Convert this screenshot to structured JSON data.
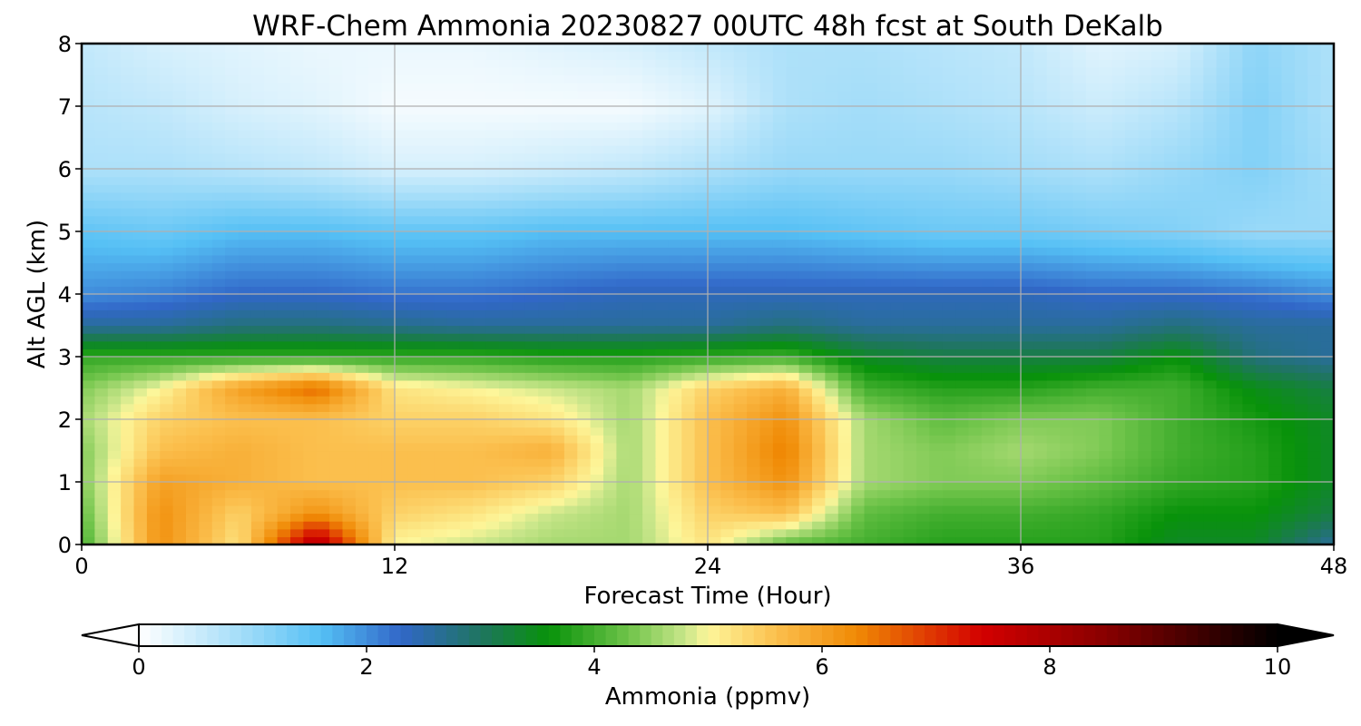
{
  "chart_data": {
    "type": "heatmap",
    "title": "WRF-Chem Ammonia  20230827 00UTC 48h fcst at South DeKalb",
    "xlabel": "Forecast Time (Hour)",
    "ylabel": "Alt AGL (km)",
    "xlim": [
      0,
      48
    ],
    "ylim": [
      0,
      8
    ],
    "x_ticks": [
      0,
      12,
      24,
      36,
      48
    ],
    "y_ticks": [
      0,
      1,
      2,
      3,
      4,
      5,
      6,
      7,
      8
    ],
    "grid": true,
    "x": [
      0,
      3,
      6,
      9,
      12,
      15,
      18,
      21,
      24,
      27,
      30,
      33,
      36,
      39,
      42,
      45,
      48
    ],
    "y": [
      0,
      0.5,
      1,
      1.5,
      2,
      2.5,
      3,
      3.5,
      4,
      5,
      6,
      7,
      8
    ],
    "values": [
      [
        4.0,
        6.2,
        5.2,
        8.0,
        5.0,
        4.8,
        4.6,
        4.6,
        5.2,
        4.2,
        4.0,
        3.8,
        3.8,
        3.8,
        3.4,
        3.4,
        2.6
      ],
      [
        4.2,
        6.2,
        5.4,
        6.2,
        5.4,
        5.2,
        4.8,
        4.6,
        5.4,
        5.6,
        4.2,
        4.0,
        4.0,
        3.9,
        3.6,
        3.6,
        3.2
      ],
      [
        4.4,
        6.0,
        5.8,
        5.6,
        5.6,
        5.6,
        5.4,
        4.6,
        5.6,
        6.2,
        4.6,
        4.4,
        4.4,
        4.2,
        3.9,
        3.8,
        3.4
      ],
      [
        4.4,
        5.6,
        5.8,
        5.6,
        5.6,
        5.6,
        5.8,
        4.6,
        5.6,
        6.4,
        4.6,
        4.4,
        4.6,
        4.4,
        4.0,
        3.8,
        3.4
      ],
      [
        4.6,
        5.4,
        5.6,
        5.6,
        5.4,
        5.4,
        5.2,
        4.6,
        5.6,
        6.2,
        4.6,
        4.2,
        4.4,
        4.4,
        4.0,
        3.7,
        3.4
      ],
      [
        4.4,
        5.0,
        6.0,
        6.6,
        5.2,
        5.0,
        4.8,
        4.6,
        5.4,
        5.8,
        4.0,
        3.8,
        3.8,
        4.0,
        4.0,
        3.5,
        3.2
      ],
      [
        3.9,
        3.9,
        3.9,
        3.9,
        3.9,
        3.9,
        3.8,
        3.8,
        3.9,
        4.0,
        3.4,
        3.2,
        3.2,
        3.2,
        3.6,
        2.8,
        2.6
      ],
      [
        2.6,
        2.6,
        2.8,
        2.8,
        2.7,
        2.6,
        2.6,
        2.6,
        2.6,
        2.8,
        2.6,
        2.6,
        2.6,
        2.6,
        2.8,
        2.6,
        2.6
      ],
      [
        2.0,
        2.1,
        2.3,
        2.3,
        2.2,
        2.2,
        2.3,
        2.4,
        2.4,
        2.4,
        2.4,
        2.4,
        2.4,
        2.3,
        2.3,
        2.2,
        2.0
      ],
      [
        1.5,
        1.4,
        1.6,
        1.6,
        1.5,
        1.5,
        1.6,
        1.6,
        1.6,
        1.6,
        1.5,
        1.4,
        1.4,
        1.3,
        1.2,
        1.0,
        1.0
      ],
      [
        0.8,
        0.8,
        0.7,
        0.6,
        0.4,
        0.4,
        0.5,
        0.6,
        0.8,
        1.0,
        1.0,
        1.0,
        0.9,
        0.8,
        1.0,
        1.2,
        0.9
      ],
      [
        0.7,
        0.6,
        0.4,
        0.3,
        0.1,
        0.1,
        0.1,
        0.1,
        0.3,
        0.8,
        0.9,
        0.8,
        0.7,
        0.5,
        0.7,
        1.2,
        0.8
      ],
      [
        0.6,
        0.4,
        0.3,
        0.2,
        0.2,
        0.2,
        0.3,
        0.4,
        0.6,
        0.8,
        0.8,
        0.7,
        0.6,
        0.3,
        0.4,
        1.1,
        0.8
      ]
    ],
    "colorbar": {
      "label": "Ammonia  (ppmv)",
      "min": 0,
      "max": 10,
      "ticks": [
        0,
        2,
        4,
        6,
        8,
        10
      ],
      "extend": "both",
      "colors": [
        {
          "v": 0,
          "c": "#ffffff"
        },
        {
          "v": 1,
          "c": "#99d9f8"
        },
        {
          "v": 1.6,
          "c": "#55c0f5"
        },
        {
          "v": 2.3,
          "c": "#3167c8"
        },
        {
          "v": 3.0,
          "c": "#1f7560"
        },
        {
          "v": 3.6,
          "c": "#08920a"
        },
        {
          "v": 4.3,
          "c": "#6fc44a"
        },
        {
          "v": 4.8,
          "c": "#c9e68a"
        },
        {
          "v": 5.0,
          "c": "#fdf69a"
        },
        {
          "v": 5.6,
          "c": "#fbbf4d"
        },
        {
          "v": 6.3,
          "c": "#f08a05"
        },
        {
          "v": 7.4,
          "c": "#d30000"
        },
        {
          "v": 8.5,
          "c": "#880000"
        },
        {
          "v": 10,
          "c": "#000000"
        }
      ]
    }
  }
}
